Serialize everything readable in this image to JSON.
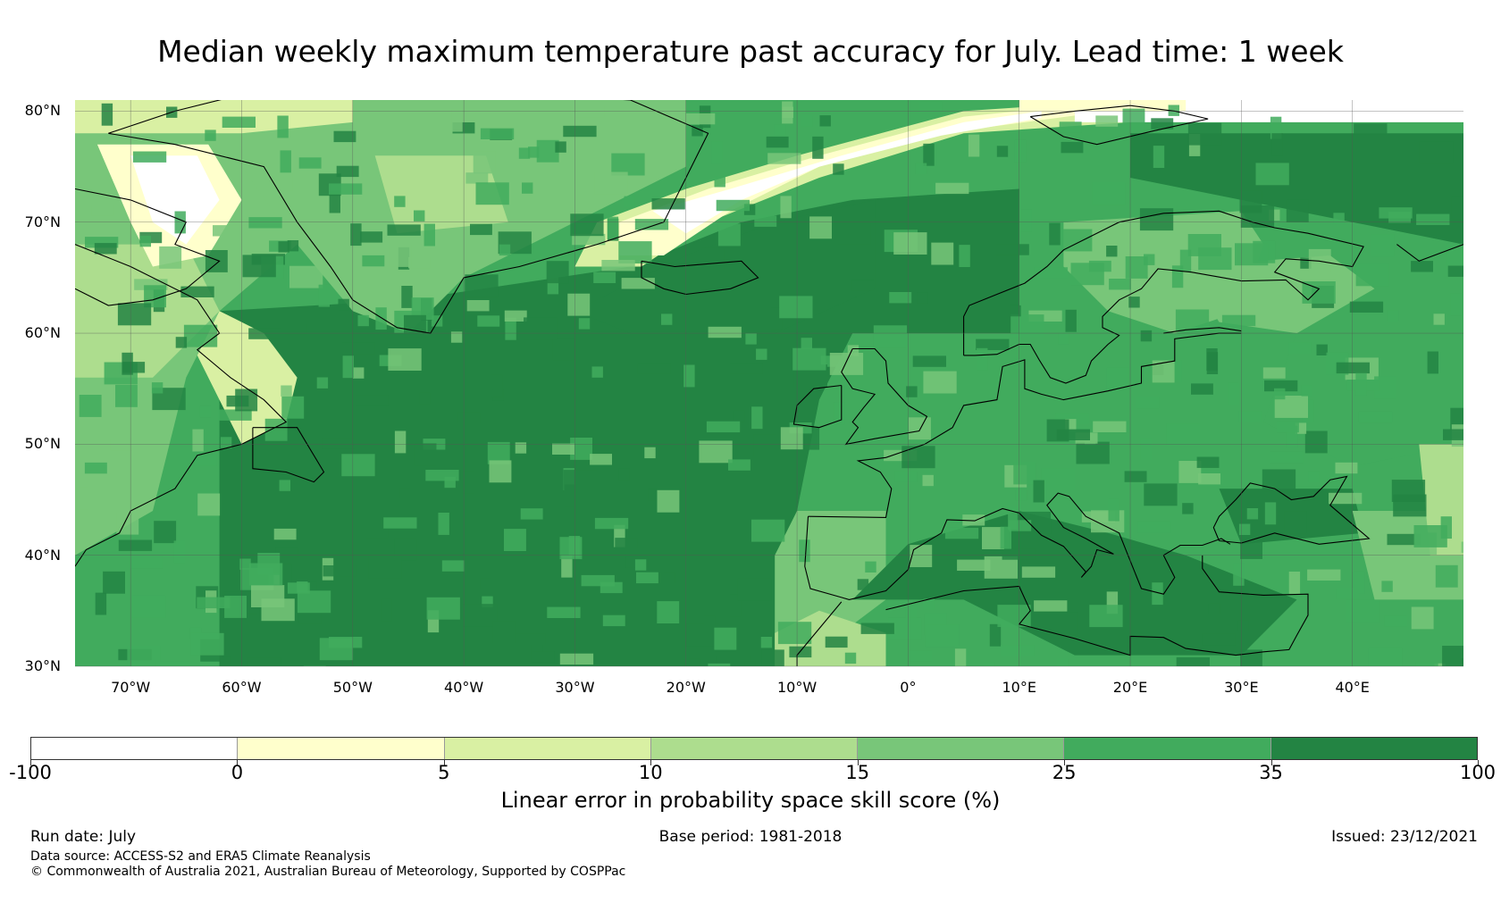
{
  "title": "Median weekly maximum temperature past accuracy for July. Lead time: 1 week",
  "map": {
    "lon_range": [
      -75,
      50
    ],
    "lat_range": [
      30,
      81
    ],
    "lat_labels": [
      "80°N",
      "70°N",
      "60°N",
      "50°N",
      "40°N",
      "30°N"
    ],
    "lat_values": [
      80,
      70,
      60,
      50,
      40,
      30
    ],
    "lon_labels": [
      "70°W",
      "60°W",
      "50°W",
      "40°W",
      "30°W",
      "20°W",
      "10°W",
      "0°",
      "10°E",
      "20°E",
      "30°E",
      "40°E"
    ],
    "lon_values": [
      -70,
      -60,
      -50,
      -40,
      -30,
      -20,
      -10,
      0,
      10,
      20,
      30,
      40
    ]
  },
  "colorbar": {
    "ticks": [
      "-100",
      "0",
      "5",
      "10",
      "15",
      "25",
      "35",
      "100"
    ],
    "colors": [
      "#ffffff",
      "#ffffcc",
      "#d9f0a3",
      "#addd8e",
      "#78c679",
      "#41ab5d",
      "#238443"
    ],
    "label": "Linear error in probability space skill score (%)"
  },
  "footer": {
    "run_date": "Run date: July",
    "base_period": "Base period: 1981-2018",
    "issued": "Issued: 23/12/2021",
    "data_source": "Data source: ACCESS-S2 and ERA5 Climate Reanalysis",
    "copyright": "© Commonwealth of Australia 2021, Australian Bureau of Meteorology, Supported by COSPPac"
  }
}
